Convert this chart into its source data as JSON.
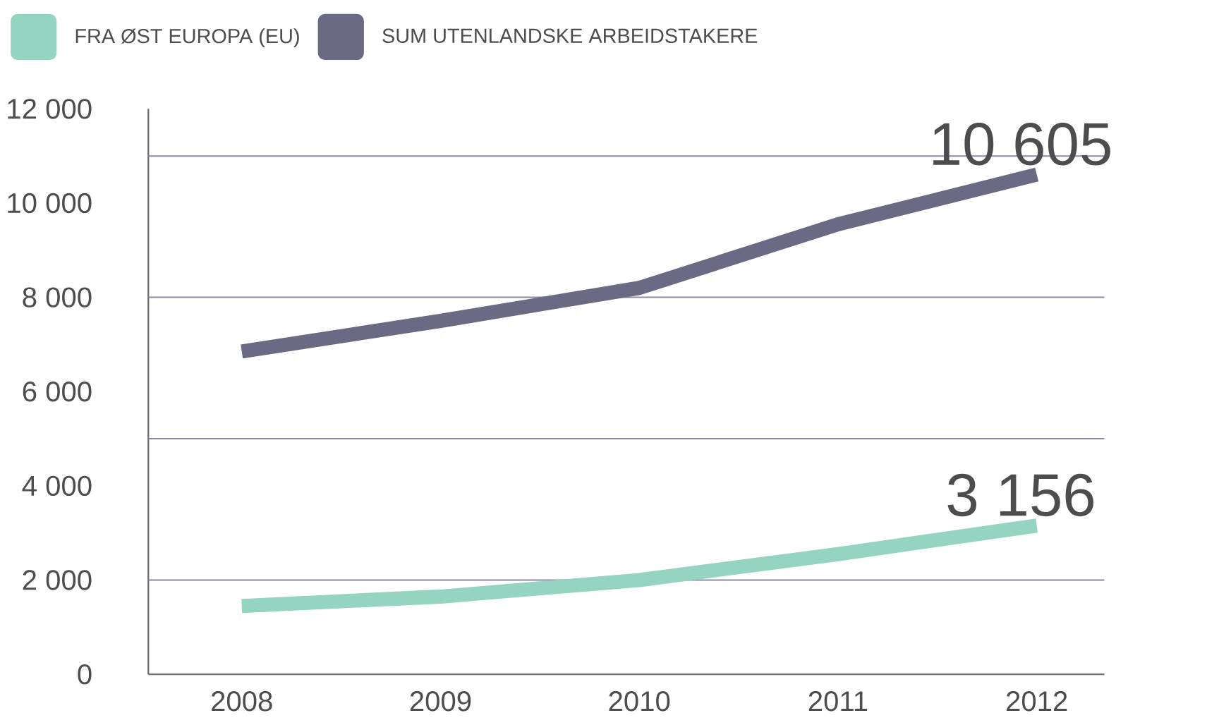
{
  "chart_data": {
    "type": "line",
    "categories": [
      "2008",
      "2009",
      "2010",
      "2011",
      "2012"
    ],
    "series": [
      {
        "name": "FRA ØST EUROPA (EU)",
        "color": "#96d4c2",
        "values": [
          1450,
          1650,
          2000,
          2550,
          3156
        ],
        "value_labels": [
          null,
          null,
          null,
          null,
          "3 156"
        ]
      },
      {
        "name": "SUM UTENLANDSKE ARBEIDSTAKERE",
        "color": "#6b6a85",
        "values": [
          6850,
          7500,
          8200,
          9550,
          10605
        ],
        "value_labels": [
          null,
          null,
          null,
          null,
          "10 605"
        ]
      }
    ],
    "ylim": [
      0,
      12000
    ],
    "yticks": [
      0,
      {
        "value": 2000,
        "label": "2 000"
      },
      {
        "value": 4000,
        "label": "4 000"
      },
      {
        "value": 6000,
        "label": "6 000"
      },
      {
        "value": 8000,
        "label": "8 000"
      },
      {
        "value": 10000,
        "label": "10 000"
      },
      {
        "value": 12000,
        "label": "12 000"
      }
    ],
    "ref_lines": [
      {
        "axis": "y",
        "value": 2000,
        "color": "#8a89a6"
      },
      {
        "axis": "y",
        "value": 5000,
        "color": "#8a89a6"
      },
      {
        "axis": "y",
        "value": 8000,
        "color": "#8a89a6"
      },
      {
        "axis": "y",
        "value": 11000,
        "color": "#8a89a6"
      }
    ],
    "legend": "top left"
  }
}
